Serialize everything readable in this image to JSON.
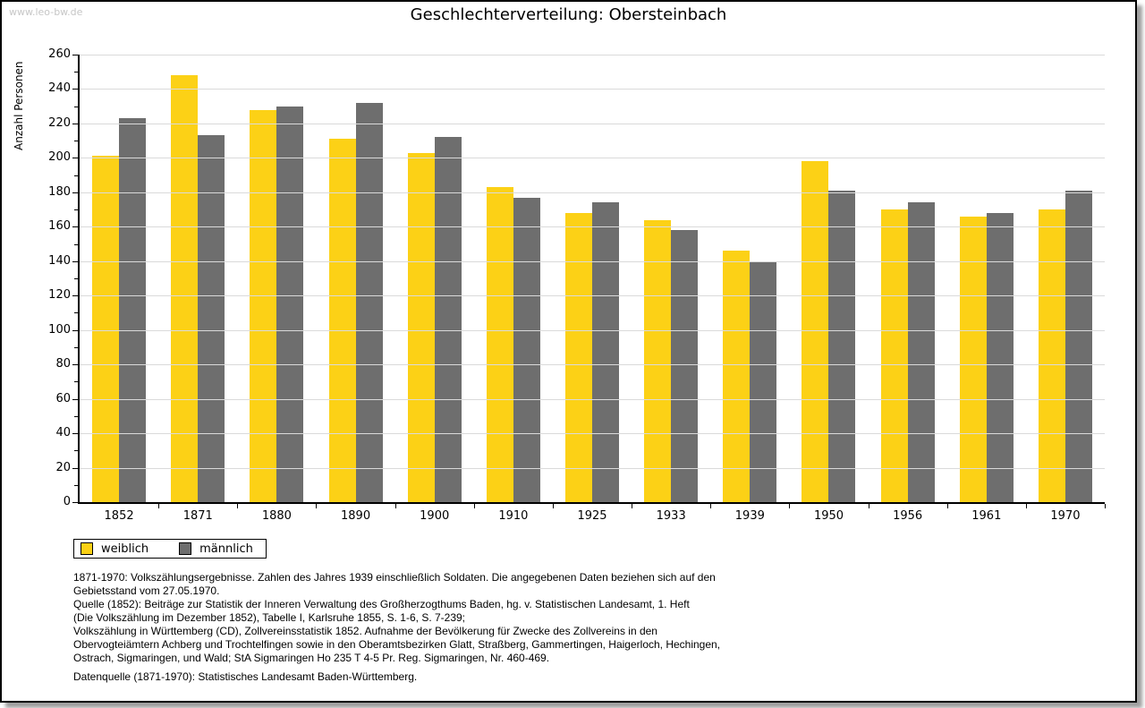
{
  "watermark": "www.leo-bw.de",
  "title": "Geschlechterverteilung: Obersteinbach",
  "chart_data": {
    "type": "bar",
    "title": "Geschlechterverteilung: Obersteinbach",
    "xlabel": "",
    "ylabel": "Anzahl Personen",
    "ylim": [
      0,
      260
    ],
    "ytick_step": 20,
    "yminor_step": 10,
    "grid": true,
    "legend_position": "bottom-left",
    "categories": [
      "1852",
      "1871",
      "1880",
      "1890",
      "1900",
      "1910",
      "1925",
      "1933",
      "1939",
      "1950",
      "1956",
      "1961",
      "1970"
    ],
    "series": [
      {
        "name": "weiblich",
        "color": "#fcd116",
        "values": [
          201,
          248,
          228,
          211,
          203,
          183,
          168,
          164,
          146,
          198,
          170,
          166,
          170
        ]
      },
      {
        "name": "männlich",
        "color": "#6e6e6e",
        "values": [
          223,
          213,
          230,
          232,
          212,
          177,
          174,
          158,
          140,
          181,
          174,
          168,
          181
        ]
      }
    ]
  },
  "colors": {
    "weiblich": "#fcd116",
    "maennlich": "#6e6e6e",
    "gridline": "#dadada",
    "watermark": "#c6c6c6"
  },
  "footer": {
    "lines": [
      "1871-1970: Volkszählungsergebnisse. Zahlen des Jahres 1939 einschließlich Soldaten. Die angegebenen Daten beziehen sich auf den",
      "Gebietsstand vom 27.05.1970.",
      "Quelle (1852): Beiträge zur Statistik der Inneren Verwaltung des Großherzogthums Baden, hg. v. Statistischen Landesamt, 1. Heft",
      "(Die Volkszählung im Dezember 1852), Tabelle I, Karlsruhe 1855, S. 1-6, S. 7-239;",
      "Volkszählung in Württemberg (CD), Zollvereinsstatistik 1852. Aufnahme der Bevölkerung für Zwecke des Zollvereins in den",
      "Obervogteiämtern Achberg und Trochtelfingen sowie in den Oberamtsbezirken Glatt, Straßberg, Gammertingen, Haigerloch, Hechingen,",
      "Ostrach, Sigmaringen, und Wald; StA Sigmaringen Ho 235 T 4-5 Pr. Reg. Sigmaringen, Nr. 460-469."
    ],
    "datasource": "Datenquelle (1871-1970): Statistisches Landesamt Baden-Württemberg."
  }
}
